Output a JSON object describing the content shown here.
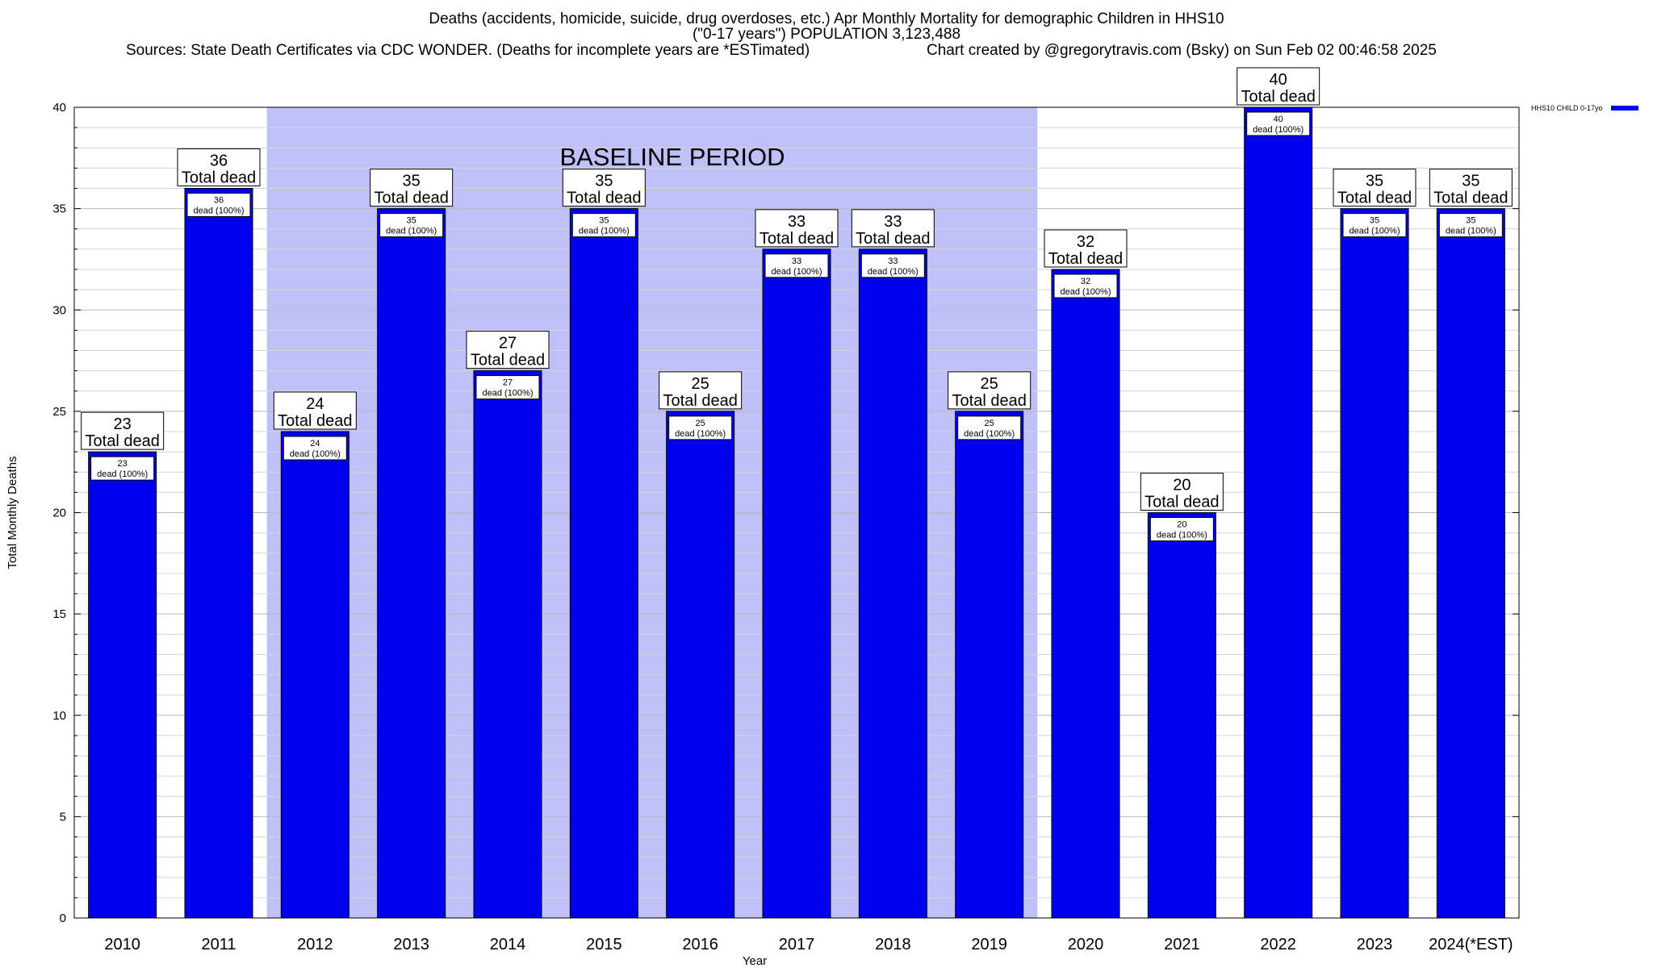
{
  "header": {
    "title_line1": "Deaths (accidents, homicide, suicide, drug overdoses, etc.) Apr Monthly Mortality for demographic Children in HHS10",
    "title_line2": "(\"0-17 years\") POPULATION 3,123,488",
    "sources": "Sources: State Death Certificates via CDC WONDER. (Deaths for incomplete years are *ESTimated)",
    "credit": "Chart created by @gregorytravis.com (Bsky) on Sun Feb 02 00:46:58 2025"
  },
  "legend": {
    "label": "HHS10 CHILD 0-17yo",
    "color": "#0000ee"
  },
  "chart_data": {
    "type": "bar",
    "categories": [
      "2010",
      "2011",
      "2012",
      "2013",
      "2014",
      "2015",
      "2016",
      "2017",
      "2018",
      "2019",
      "2020",
      "2021",
      "2022",
      "2023",
      "2024(*EST)"
    ],
    "series": [
      {
        "name": "HHS10 CHILD 0-17yo",
        "values": [
          23,
          36,
          24,
          35,
          27,
          35,
          25,
          33,
          33,
          25,
          32,
          20,
          40,
          35,
          35
        ]
      }
    ],
    "total_label_suffix": "Total dead",
    "inner_label_suffix": "dead (100%)",
    "xlabel": "Year",
    "ylabel": "Total Monthly Deaths",
    "ylim": [
      0,
      40
    ],
    "yticks": [
      0,
      5,
      10,
      15,
      20,
      25,
      30,
      35,
      40
    ],
    "grid": true,
    "legend_position": "top-right, outside plot",
    "shaded_region": {
      "label": "BASELINE PERIOD",
      "from": "2012",
      "to": "2019",
      "color": "#c0c0f8"
    },
    "bar_color": "#0000ee"
  }
}
